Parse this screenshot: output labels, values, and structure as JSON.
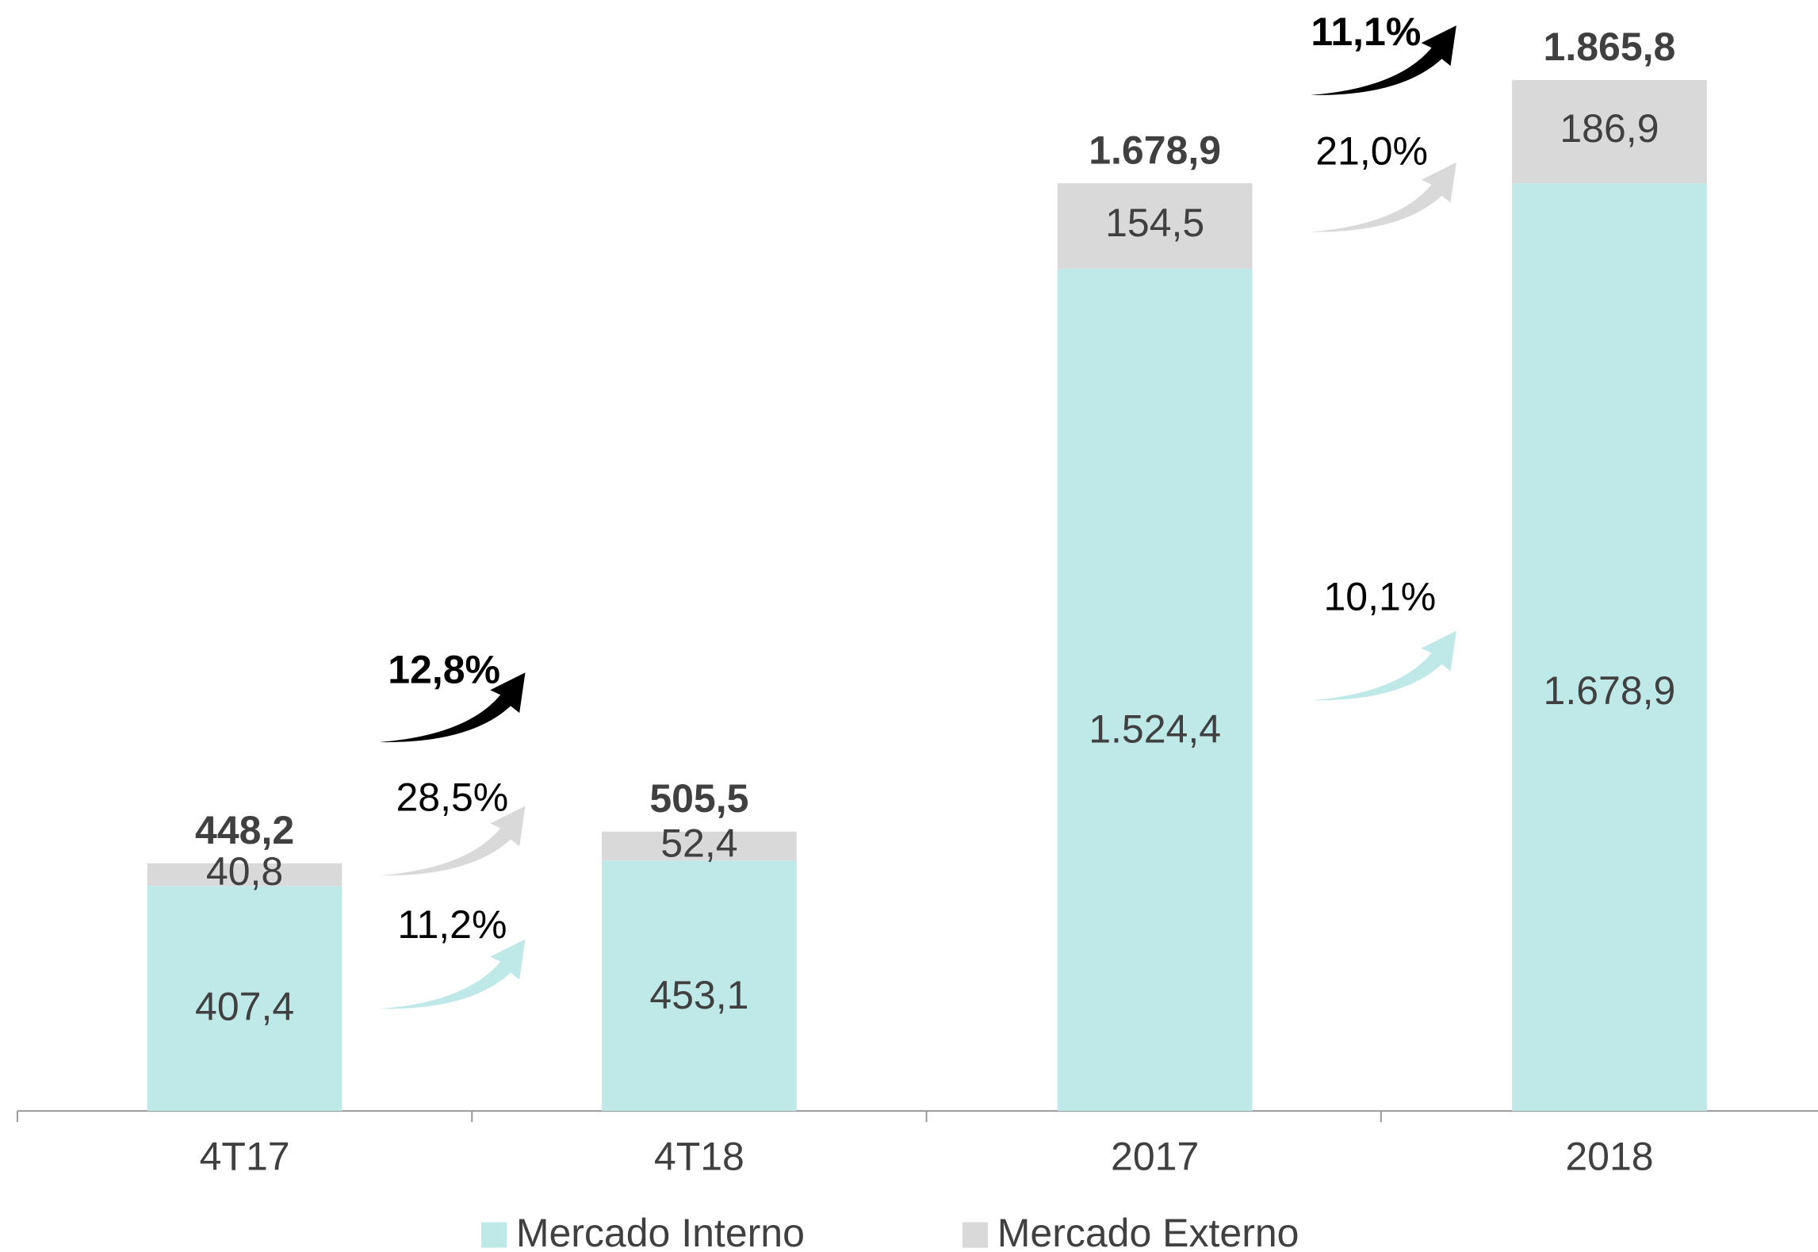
{
  "chart_data": {
    "type": "stacked_bar",
    "categories": [
      "4T17",
      "4T18",
      "2017",
      "2018"
    ],
    "series": [
      {
        "name": "Mercado Interno",
        "color": "#bfe8e8",
        "values": [
          407.4,
          453.1,
          1524.4,
          1678.9
        ],
        "value_labels": [
          "407,4",
          "453,1",
          "1.524,4",
          "1.678,9"
        ]
      },
      {
        "name": "Mercado Externo",
        "color": "#d9d9d9",
        "values": [
          40.8,
          52.4,
          154.5,
          186.9
        ],
        "value_labels": [
          "40,8",
          "52,4",
          "154,5",
          "186,9"
        ]
      }
    ],
    "totals": [
      448.2,
      505.5,
      1678.9,
      1865.8
    ],
    "total_labels": [
      "448,2",
      "505,5",
      "1.678,9",
      "1.865,8"
    ],
    "annotations": [
      "12,8%",
      "28,5%",
      "11,2%",
      "11,1%",
      "21,0%",
      "10,1%"
    ],
    "legend": "bottom"
  }
}
